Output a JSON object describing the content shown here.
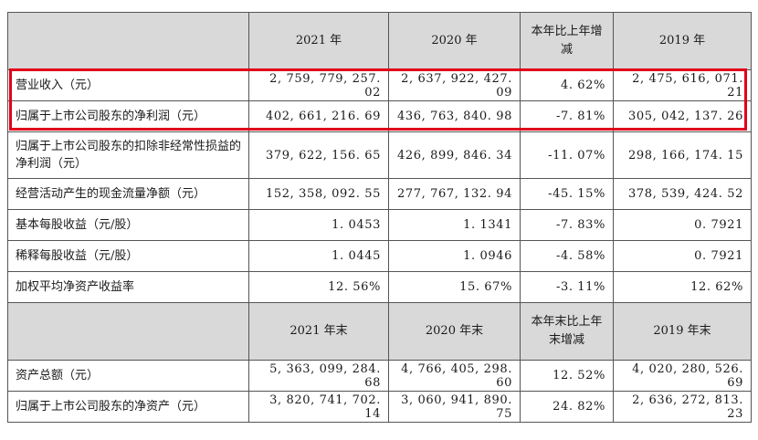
{
  "header1": {
    "c1": "2021 年",
    "c2": "2020 年",
    "c3": "本年比上年增减",
    "c4": "2019 年"
  },
  "header2": {
    "c1": "2021 年末",
    "c2": "2020 年末",
    "c3": "本年末比上年末增减",
    "c4": "2019 年末"
  },
  "rows": [
    {
      "label": "营业收入（元）",
      "v1": "2, 759, 779, 257. 02",
      "v2": "2, 637, 922, 427. 09",
      "v3": "4. 62%",
      "v4": "2, 475, 616, 071. 21"
    },
    {
      "label": "归属于上市公司股东的净利润（元）",
      "v1": "402, 661, 216. 69",
      "v2": "436, 763, 840. 98",
      "v3": "-7. 81%",
      "v4": "305, 042, 137. 26"
    },
    {
      "label": "归属于上市公司股东的扣除非经常性损益的净利润（元）",
      "v1": "379, 622, 156. 65",
      "v2": "426, 899, 846. 34",
      "v3": "-11. 07%",
      "v4": "298, 166, 174. 15"
    },
    {
      "label": "经营活动产生的现金流量净额（元）",
      "v1": "152, 358, 092. 55",
      "v2": "277, 767, 132. 94",
      "v3": "-45. 15%",
      "v4": "378, 539, 424. 52"
    },
    {
      "label": "基本每股收益（元/股）",
      "v1": "1. 0453",
      "v2": "1. 1341",
      "v3": "-7. 83%",
      "v4": "0. 7921"
    },
    {
      "label": "稀释每股收益（元/股）",
      "v1": "1. 0445",
      "v2": "1. 0946",
      "v3": "-4. 58%",
      "v4": "0. 7921"
    },
    {
      "label": "加权平均净资产收益率",
      "v1": "12. 56%",
      "v2": "15. 67%",
      "v3": "-3. 11%",
      "v4": "12. 62%"
    }
  ],
  "rows2": [
    {
      "label": "资产总额（元）",
      "v1": "5, 363, 099, 284. 68",
      "v2": "4, 766, 405, 298. 60",
      "v3": "12. 52%",
      "v4": "4, 020, 280, 526. 69"
    },
    {
      "label": "归属于上市公司股东的净资产（元）",
      "v1": "3, 820, 741, 702. 14",
      "v2": "3, 060, 941, 890. 75",
      "v3": "24. 82%",
      "v4": "2, 636, 272, 813. 23"
    }
  ],
  "highlight_color": "#e0001b"
}
